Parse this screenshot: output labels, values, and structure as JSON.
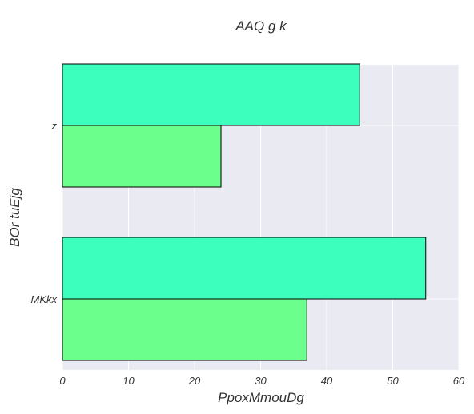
{
  "chart_data": {
    "type": "bar",
    "orientation": "horizontal",
    "title": "AAQ  g k",
    "xlabel": "PpoxMmouDg",
    "ylabel": "BOr  tuEjg",
    "categories": [
      "z",
      "MKkx"
    ],
    "series": [
      {
        "values": [
          45,
          55
        ],
        "color": "#3cffbe"
      },
      {
        "values": [
          24,
          37
        ],
        "color": "#6bff8c"
      }
    ],
    "xlim": [
      0,
      60
    ],
    "xticks": [
      0,
      10,
      20,
      30,
      40,
      50,
      60
    ],
    "grid": true,
    "legend": "none",
    "plot_background": "#eaeaf2"
  }
}
